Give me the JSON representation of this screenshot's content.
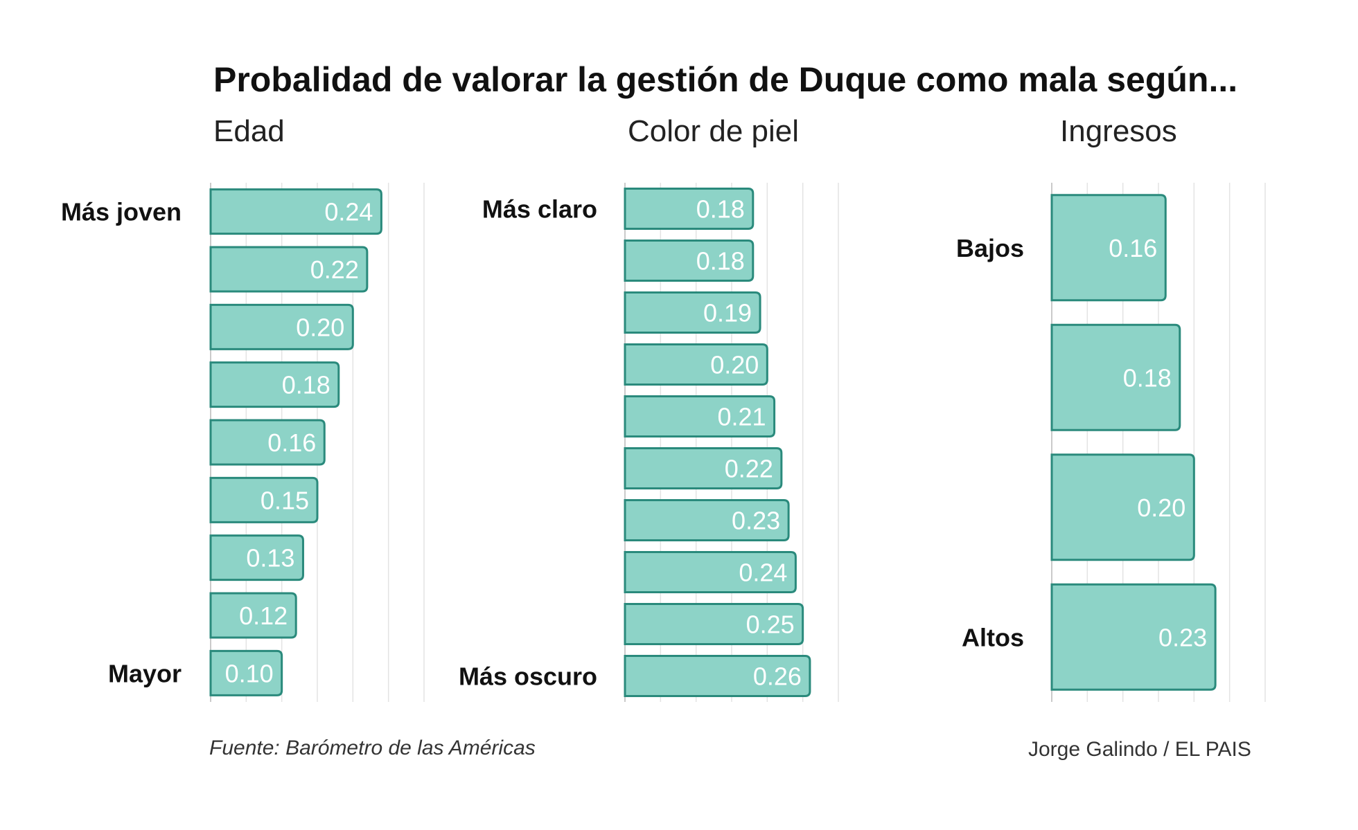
{
  "title": "Probalidad de valorar la gestión de Duque como mala según...",
  "source": "Fuente: Barómetro de las Américas",
  "credit": "Jorge Galindo / EL PAIS",
  "colors": {
    "bar_fill": "#8dd3c7",
    "bar_stroke": "#2a8a7c",
    "value_text": "#ffffff"
  },
  "chart_data": [
    {
      "type": "bar",
      "orientation": "horizontal",
      "title": "Edad",
      "category_labels": [
        {
          "index": 0,
          "label": "Más joven"
        },
        {
          "index": 8,
          "label": "Mayor"
        }
      ],
      "values": [
        0.24,
        0.22,
        0.2,
        0.18,
        0.16,
        0.15,
        0.13,
        0.12,
        0.1
      ],
      "value_labels": [
        "0.24",
        "0.22",
        "0.20",
        "0.18",
        "0.16",
        "0.15",
        "0.13",
        "0.12",
        "0.10"
      ],
      "xlim": [
        0,
        0.3
      ],
      "grid": true
    },
    {
      "type": "bar",
      "orientation": "horizontal",
      "title": "Color de piel",
      "category_labels": [
        {
          "index": 0,
          "label": "Más claro"
        },
        {
          "index": 9,
          "label": "Más oscuro"
        }
      ],
      "values": [
        0.18,
        0.18,
        0.19,
        0.2,
        0.21,
        0.22,
        0.23,
        0.24,
        0.25,
        0.26
      ],
      "value_labels": [
        "0.18",
        "0.18",
        "0.19",
        "0.20",
        "0.21",
        "0.22",
        "0.23",
        "0.24",
        "0.25",
        "0.26"
      ],
      "xlim": [
        0,
        0.3
      ],
      "grid": true
    },
    {
      "type": "bar",
      "orientation": "horizontal",
      "title": "Ingresos",
      "category_labels": [
        {
          "index": 0,
          "label": "Bajos"
        },
        {
          "index": 3,
          "label": "Altos"
        }
      ],
      "values": [
        0.16,
        0.18,
        0.2,
        0.23
      ],
      "value_labels": [
        "0.16",
        "0.18",
        "0.20",
        "0.23"
      ],
      "xlim": [
        0,
        0.3
      ],
      "grid": true
    }
  ]
}
